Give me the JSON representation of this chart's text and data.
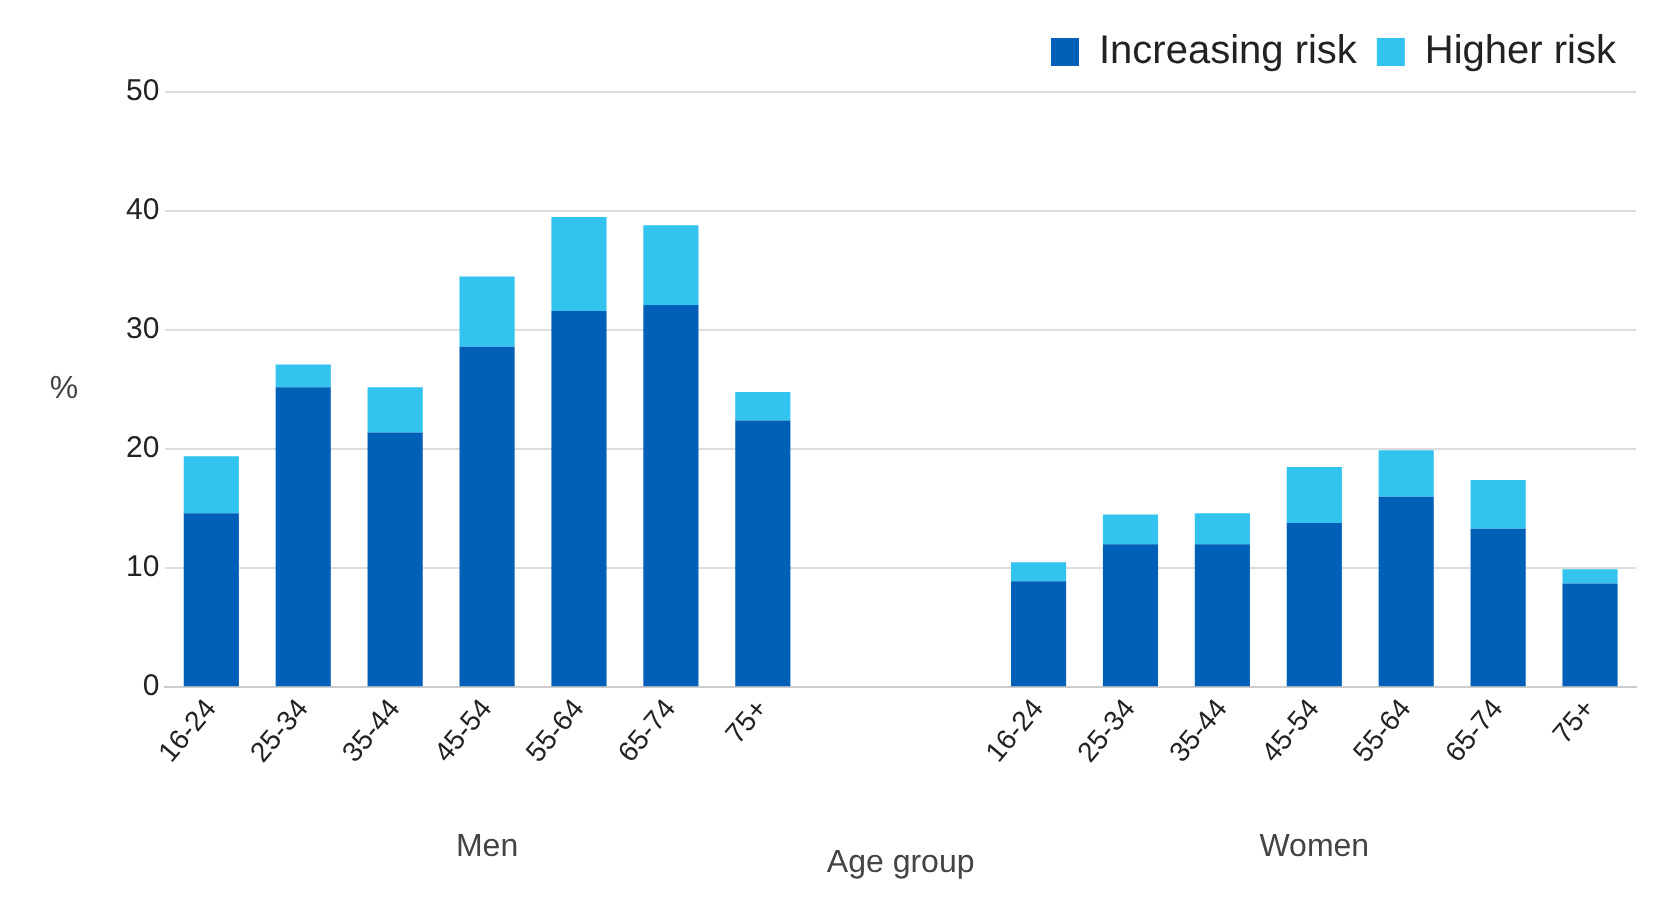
{
  "chart_data": {
    "type": "bar",
    "stacked": true,
    "xlabel": "Age group",
    "ylabel": "%",
    "categories": [
      "16-24",
      "25-34",
      "35-44",
      "45-54",
      "55-64",
      "65-74",
      "75+",
      null,
      null,
      "16-24",
      "25-34",
      "35-44",
      "45-54",
      "55-64",
      "65-74",
      "75+"
    ],
    "series": [
      {
        "name": "Increasing risk",
        "color": "#0060b8",
        "values": [
          14.6,
          25.2,
          21.4,
          28.6,
          31.6,
          32.1,
          22.4,
          null,
          null,
          8.9,
          12.0,
          12.0,
          13.8,
          16.0,
          13.3,
          8.7
        ]
      },
      {
        "name": "Higher risk",
        "color": "#33c3ef",
        "values": [
          4.8,
          1.9,
          3.8,
          5.9,
          7.9,
          6.7,
          2.4,
          null,
          null,
          1.6,
          2.5,
          2.6,
          4.7,
          3.9,
          4.1,
          1.2
        ]
      }
    ],
    "annotations": [
      "Men",
      "Women"
    ],
    "ylim": [
      0,
      50
    ],
    "yticks": [
      0,
      10,
      20,
      30,
      40,
      50
    ],
    "grid": "y",
    "legend": "top right"
  }
}
